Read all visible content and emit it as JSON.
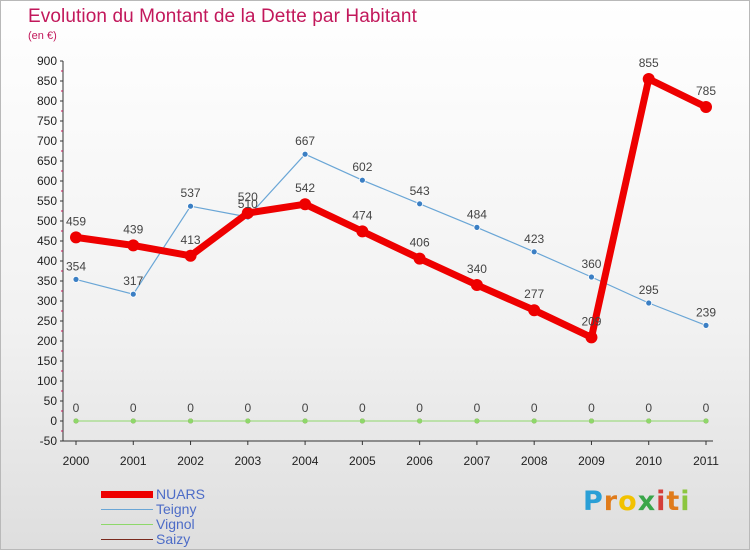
{
  "header": {
    "title": "Evolution du Montant de la Dette par Habitant",
    "subtitle": "(en €)"
  },
  "chart_data": {
    "type": "line",
    "title": "Evolution du Montant de la Dette par Habitant",
    "subtitle": "(en €)",
    "xlabel": "",
    "ylabel": "",
    "categories": [
      "2000",
      "2001",
      "2002",
      "2003",
      "2004",
      "2005",
      "2006",
      "2007",
      "2008",
      "2009",
      "2010",
      "2011"
    ],
    "ylim": [
      -50,
      900
    ],
    "yticks": [
      -50,
      0,
      50,
      100,
      150,
      200,
      250,
      300,
      350,
      400,
      450,
      500,
      550,
      600,
      650,
      700,
      750,
      800,
      850,
      900
    ],
    "grid": false,
    "legend_position": "bottom-left",
    "series": [
      {
        "name": "NUARS",
        "color": "#ee0000",
        "values": [
          459,
          439,
          413,
          520,
          542,
          474,
          406,
          340,
          277,
          209,
          855,
          785
        ]
      },
      {
        "name": "Teigny",
        "color": "#6aa6d6",
        "values": [
          354,
          317,
          537,
          510,
          667,
          602,
          543,
          484,
          423,
          360,
          295,
          239
        ]
      },
      {
        "name": "Vignol",
        "color": "#8ed86a",
        "values": [
          0,
          0,
          0,
          0,
          0,
          0,
          0,
          0,
          0,
          0,
          0,
          0
        ]
      },
      {
        "name": "Saizy",
        "color": "#7a2a1e",
        "values": [
          0,
          0,
          0,
          0,
          0,
          0,
          0,
          0,
          0,
          0,
          0,
          0
        ]
      }
    ]
  },
  "brand": {
    "letters": [
      "P",
      "r",
      "o",
      "x",
      "i",
      "t",
      "i"
    ],
    "colors": [
      "#2a9fd6",
      "#e07b1a",
      "#f2c200",
      "#3aa64a",
      "#d43f3a",
      "#e07b1a",
      "#8cc63f"
    ]
  }
}
